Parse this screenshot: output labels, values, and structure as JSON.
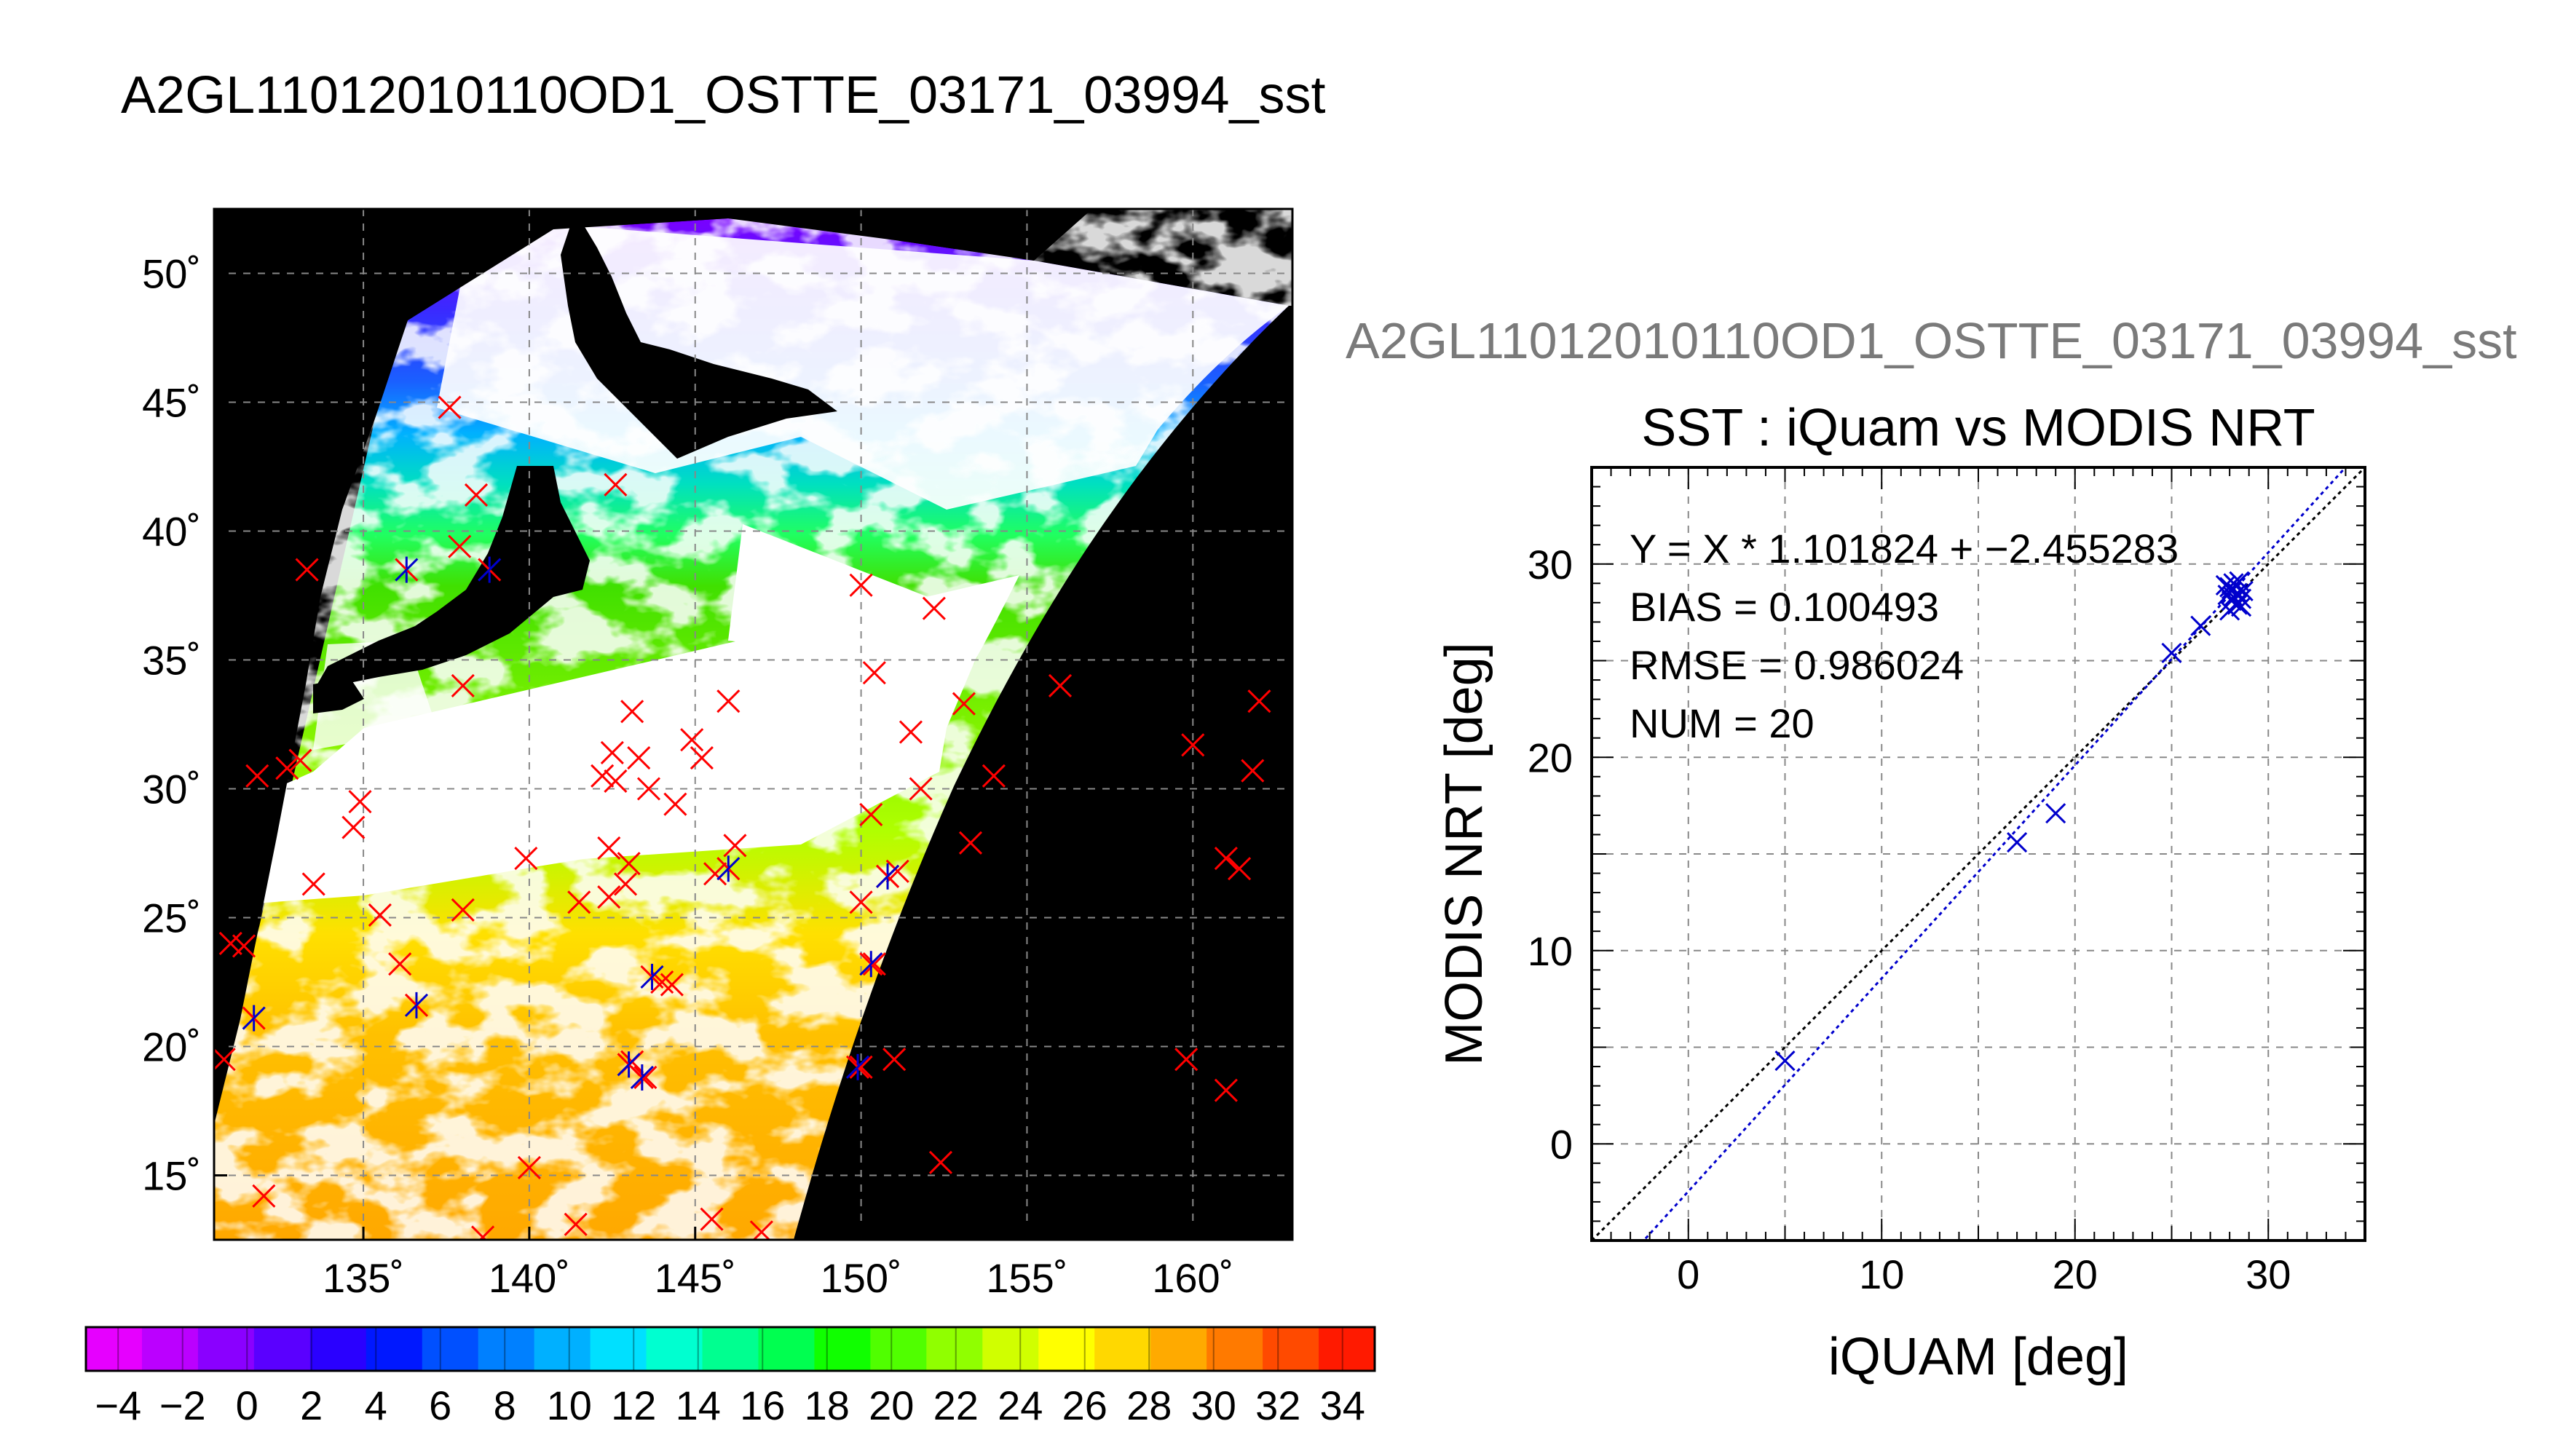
{
  "header": {
    "main_title": "A2GL11012010110OD1_OSTTE_03171_03994_sst",
    "right_title": "A2GL11012010110OD1_OSTTE_03171_03994_sst"
  },
  "map": {
    "lon_ticks": [
      "135˚",
      "140˚",
      "145˚",
      "150˚",
      "155˚",
      "160˚"
    ],
    "lat_ticks": [
      "50˚",
      "45˚",
      "40˚",
      "35˚",
      "30˚",
      "25˚",
      "20˚",
      "15˚"
    ],
    "lon_values": [
      135,
      140,
      145,
      150,
      155,
      160
    ],
    "lat_values": [
      50,
      45,
      40,
      35,
      30,
      25,
      20,
      15
    ],
    "extent": {
      "lon": [
        130.5,
        163
      ],
      "lat": [
        12.5,
        52.5
      ]
    },
    "marker_color": "#ff0000",
    "insitu_color": "#0000cc",
    "background_color": "#000000",
    "red_markers": [
      [
        137.6,
        44.8
      ],
      [
        138.4,
        41.4
      ],
      [
        142.6,
        41.8
      ],
      [
        137.9,
        39.4
      ],
      [
        133.3,
        38.5
      ],
      [
        150.0,
        37.9
      ],
      [
        152.2,
        37.0
      ],
      [
        138.0,
        34.0
      ],
      [
        150.4,
        34.5
      ],
      [
        146.0,
        33.4
      ],
      [
        143.1,
        33.0
      ],
      [
        151.5,
        32.2
      ],
      [
        156.0,
        34.0
      ],
      [
        162.0,
        33.4
      ],
      [
        153.1,
        33.3
      ],
      [
        131.8,
        30.5
      ],
      [
        132.7,
        30.8
      ],
      [
        133.1,
        31.1
      ],
      [
        142.5,
        31.4
      ],
      [
        143.3,
        31.2
      ],
      [
        144.9,
        31.9
      ],
      [
        145.2,
        31.2
      ],
      [
        134.9,
        29.5
      ],
      [
        134.7,
        28.5
      ],
      [
        142.2,
        30.5
      ],
      [
        142.6,
        30.3
      ],
      [
        143.6,
        30.0
      ],
      [
        144.4,
        29.4
      ],
      [
        150.3,
        29.0
      ],
      [
        151.8,
        30.0
      ],
      [
        154.0,
        30.5
      ],
      [
        160.0,
        31.7
      ],
      [
        161.8,
        30.7
      ],
      [
        139.9,
        27.3
      ],
      [
        142.4,
        27.7
      ],
      [
        143.0,
        27.1
      ],
      [
        145.6,
        26.7
      ],
      [
        146.2,
        27.8
      ],
      [
        150.8,
        26.6
      ],
      [
        151.1,
        26.8
      ],
      [
        153.3,
        27.9
      ],
      [
        161.0,
        27.3
      ],
      [
        161.4,
        26.9
      ],
      [
        142.4,
        25.8
      ],
      [
        150.0,
        25.6
      ],
      [
        141.5,
        25.6
      ],
      [
        142.9,
        26.3
      ],
      [
        133.5,
        26.3
      ],
      [
        138.0,
        25.3
      ],
      [
        135.5,
        25.1
      ],
      [
        136.1,
        23.2
      ],
      [
        144.0,
        22.5
      ],
      [
        144.3,
        22.4
      ],
      [
        131.0,
        24.0
      ],
      [
        131.4,
        23.9
      ],
      [
        150.4,
        23.2
      ],
      [
        143.1,
        19.4
      ],
      [
        143.5,
        18.8
      ],
      [
        150.0,
        19.2
      ],
      [
        151.0,
        19.5
      ],
      [
        159.8,
        19.5
      ],
      [
        161.0,
        18.3
      ],
      [
        130.8,
        19.5
      ],
      [
        140.0,
        15.3
      ],
      [
        132.0,
        14.2
      ],
      [
        152.4,
        15.5
      ],
      [
        138.6,
        12.6
      ],
      [
        141.4,
        13.1
      ],
      [
        145.5,
        13.3
      ],
      [
        147.0,
        12.8
      ]
    ],
    "blue_markers": [
      [
        136.3,
        38.5
      ],
      [
        138.8,
        38.5
      ],
      [
        146.0,
        26.9
      ],
      [
        150.8,
        26.6
      ],
      [
        143.7,
        22.7
      ],
      [
        150.3,
        23.2
      ],
      [
        143.0,
        19.3
      ],
      [
        143.4,
        18.8
      ],
      [
        149.9,
        19.2
      ],
      [
        131.7,
        21.1
      ],
      [
        136.6,
        21.6
      ]
    ]
  },
  "colorbar": {
    "tick_labels": [
      "−4",
      "−2",
      "0",
      "2",
      "4",
      "6",
      "8",
      "10",
      "12",
      "14",
      "16",
      "18",
      "20",
      "22",
      "24",
      "26",
      "28",
      "30",
      "32",
      "34"
    ],
    "tick_values": [
      -4,
      -2,
      0,
      2,
      4,
      6,
      8,
      10,
      12,
      14,
      16,
      18,
      20,
      22,
      24,
      26,
      28,
      30,
      32,
      34
    ],
    "range": [
      -5,
      35
    ],
    "colors": [
      "#e600ff",
      "#bb00ff",
      "#8a00ff",
      "#5a00ff",
      "#2a00ff",
      "#0018ff",
      "#0050ff",
      "#0080ff",
      "#00b0ff",
      "#00e0ff",
      "#00ffd0",
      "#00ff90",
      "#00ff50",
      "#10ff00",
      "#50ff00",
      "#90ff00",
      "#d0ff00",
      "#ffff00",
      "#ffd800",
      "#ffaa00",
      "#ff7a00",
      "#ff4a00",
      "#ff1a00"
    ]
  },
  "chart_data": {
    "type": "scatter",
    "title": "SST : iQuam vs MODIS NRT",
    "xlabel": "iQUAM [deg]",
    "ylabel": "MODIS NRT [deg]",
    "xlim": [
      -5,
      35
    ],
    "ylim": [
      -5,
      35
    ],
    "x_ticks": [
      "0",
      "10",
      "20",
      "30"
    ],
    "y_ticks": [
      "0",
      "10",
      "20",
      "30"
    ],
    "x_tick_values": [
      0,
      10,
      20,
      30
    ],
    "y_tick_values": [
      0,
      10,
      20,
      30
    ],
    "grid": true,
    "annotations": [
      "Y = X * 1.101824 + −2.455283",
      "BIAS = 0.100493",
      "RMSE = 0.986024",
      "NUM = 20"
    ],
    "regression": {
      "slope": 1.101824,
      "intercept": -2.455283
    },
    "marker_color": "#0000cc",
    "points": [
      {
        "x": 5.0,
        "y": 4.3
      },
      {
        "x": 17.0,
        "y": 15.6
      },
      {
        "x": 19.0,
        "y": 17.1
      },
      {
        "x": 25.0,
        "y": 25.4
      },
      {
        "x": 26.5,
        "y": 26.8
      },
      {
        "x": 28.0,
        "y": 28.8
      },
      {
        "x": 28.2,
        "y": 29.0
      },
      {
        "x": 28.4,
        "y": 28.5
      },
      {
        "x": 28.1,
        "y": 28.1
      },
      {
        "x": 28.6,
        "y": 27.8
      },
      {
        "x": 28.0,
        "y": 27.6
      },
      {
        "x": 28.3,
        "y": 28.9
      },
      {
        "x": 27.9,
        "y": 28.4
      },
      {
        "x": 28.5,
        "y": 29.1
      },
      {
        "x": 28.2,
        "y": 28.3
      },
      {
        "x": 28.7,
        "y": 28.6
      },
      {
        "x": 27.8,
        "y": 28.9
      },
      {
        "x": 28.4,
        "y": 27.9
      },
      {
        "x": 28.6,
        "y": 28.2
      },
      {
        "x": 28.1,
        "y": 28.7
      }
    ]
  }
}
